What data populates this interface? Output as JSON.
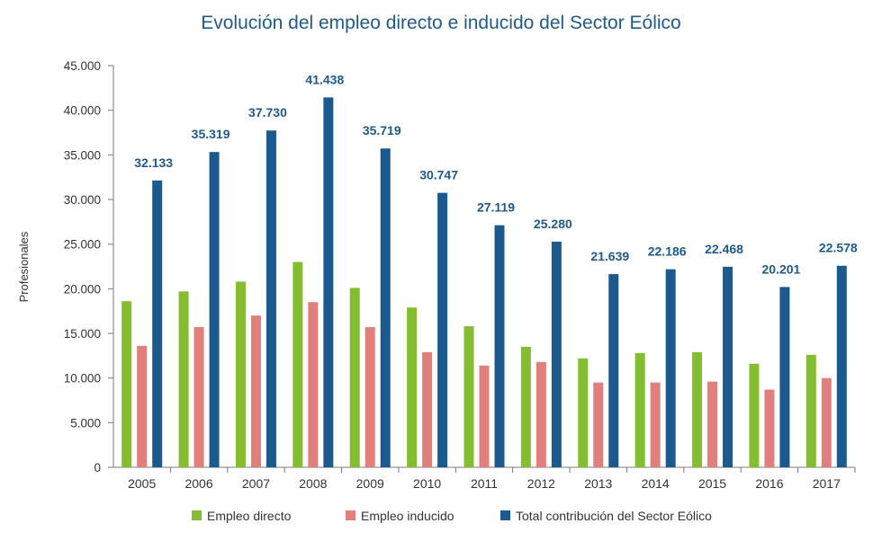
{
  "chart_data": {
    "type": "bar",
    "title": "Evolución del empleo directo e inducido del Sector Eólico",
    "xlabel": "",
    "ylabel": "Profesionales",
    "ylim": [
      0,
      45000
    ],
    "yticks": [
      0,
      5000,
      10000,
      15000,
      20000,
      25000,
      30000,
      35000,
      40000,
      45000
    ],
    "ytick_labels": [
      "0",
      "5.000",
      "10.000",
      "15.000",
      "20.000",
      "25.000",
      "30.000",
      "35.000",
      "40.000",
      "45.000"
    ],
    "grid": false,
    "legend_position": "bottom",
    "categories": [
      "2005",
      "2006",
      "2007",
      "2008",
      "2009",
      "2010",
      "2011",
      "2012",
      "2013",
      "2014",
      "2015",
      "2016",
      "2017"
    ],
    "series": [
      {
        "name": "Empleo directo",
        "color": "#84bd2f",
        "values": [
          18600,
          19700,
          20800,
          23000,
          20100,
          17900,
          15800,
          13500,
          12200,
          12800,
          12900,
          11600,
          12600
        ]
      },
      {
        "name": "Empleo inducido",
        "color": "#e07f7c",
        "values": [
          13600,
          15700,
          17000,
          18500,
          15700,
          12900,
          11400,
          11800,
          9500,
          9500,
          9600,
          8700,
          10000
        ]
      },
      {
        "name": "Total contribución del Sector Eólico",
        "color": "#1c5a8e",
        "values": [
          32133,
          35319,
          37730,
          41438,
          35719,
          30747,
          27119,
          25280,
          21639,
          22186,
          22468,
          20201,
          22578
        ],
        "data_labels": [
          "32.133",
          "35.319",
          "37.730",
          "41.438",
          "35.719",
          "30.747",
          "27.119",
          "25.280",
          "21.639",
          "22.186",
          "22.468",
          "20.201",
          "22.578"
        ]
      }
    ]
  }
}
